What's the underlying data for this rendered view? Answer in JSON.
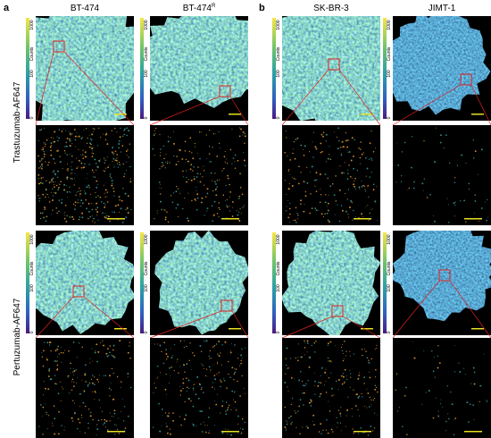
{
  "labels": {
    "panel_a": "a",
    "panel_b": "b"
  },
  "columns": [
    {
      "name": "BT-474"
    },
    {
      "name": "BT-474",
      "superscript": "R"
    },
    {
      "name": "SK-BR-3"
    },
    {
      "name": "JIMT-1"
    }
  ],
  "rows": [
    "Trastuzumab-AF647",
    "Pertuzumab-AF647"
  ],
  "colorbar": {
    "label": "Counts",
    "ticks": [
      1000,
      100,
      0
    ]
  }
}
